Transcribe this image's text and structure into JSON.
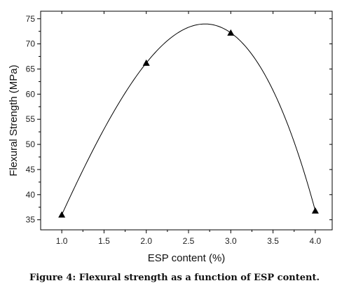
{
  "chart_data": {
    "type": "scatter",
    "xlabel": "ESP content (%)",
    "ylabel": "Flexural Strength (MPa)",
    "xlim": [
      0.75,
      4.2
    ],
    "ylim": [
      33,
      76.5
    ],
    "xticks": [
      "1.0",
      "1.5",
      "2.0",
      "2.5",
      "3.0",
      "3.5",
      "4.0"
    ],
    "yticks": [
      "35",
      "40",
      "45",
      "50",
      "55",
      "60",
      "65",
      "70",
      "75"
    ],
    "series": [
      {
        "x": [
          1.0,
          2.0,
          3.0,
          4.0
        ],
        "y": [
          36.0,
          66.2,
          72.2,
          36.8
        ],
        "marker": "triangle",
        "fit": "smooth curve",
        "color": "#000000"
      }
    ],
    "grid": false
  },
  "caption": "Figure 4: Flexural strength as a function of ESP content."
}
